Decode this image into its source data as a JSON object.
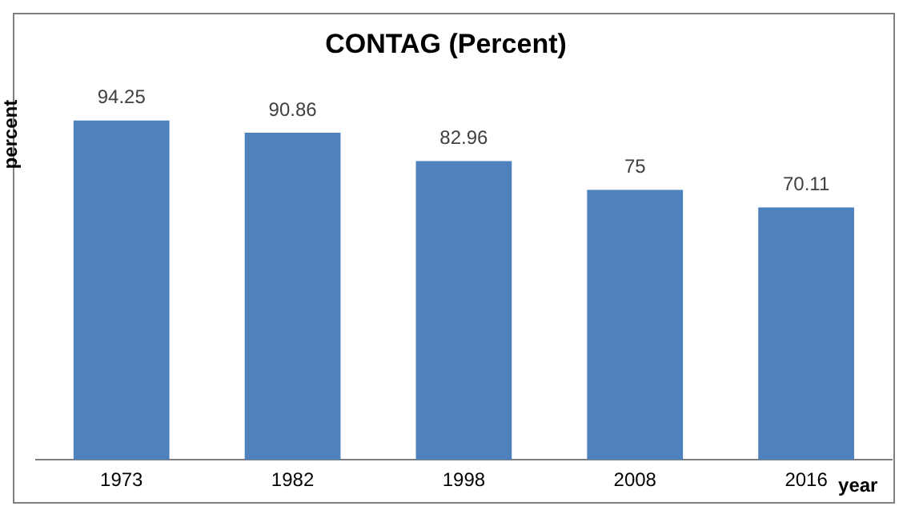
{
  "chart_data": {
    "type": "bar",
    "title": "CONTAG (Percent)",
    "xlabel": "year",
    "ylabel": "percent",
    "categories": [
      "1973",
      "1982",
      "1998",
      "2008",
      "2016"
    ],
    "values": [
      94.25,
      90.86,
      82.96,
      75,
      70.11
    ],
    "color": "#4f81bd",
    "data_labels": true,
    "grid": false,
    "legend": false
  }
}
